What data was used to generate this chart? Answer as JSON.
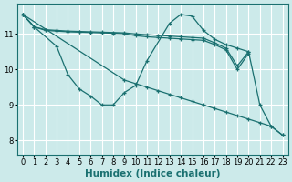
{
  "xlabel": "Humidex (Indice chaleur)",
  "ylabel": "",
  "xlim": [
    -0.5,
    23.5
  ],
  "ylim": [
    7.6,
    11.85
  ],
  "bg_color": "#cceaea",
  "grid_color": "#ffffff",
  "line_color": "#1a7070",
  "series": [
    {
      "x": [
        0,
        1,
        3,
        4,
        5,
        6,
        7,
        8,
        9,
        10,
        11,
        13,
        14,
        15,
        16,
        17,
        18,
        19,
        20,
        21,
        22,
        23
      ],
      "y": [
        11.55,
        11.2,
        10.65,
        9.85,
        9.45,
        9.25,
        9.0,
        9.0,
        9.35,
        9.55,
        10.25,
        11.3,
        11.55,
        11.5,
        11.1,
        10.85,
        10.7,
        10.6,
        10.5,
        9.0,
        8.4,
        8.15
      ]
    },
    {
      "x": [
        0,
        1,
        2,
        3,
        4,
        5,
        6,
        7,
        8,
        9,
        10,
        11,
        12,
        13,
        14,
        15,
        16,
        17,
        18,
        19,
        20
      ],
      "y": [
        11.55,
        11.2,
        11.12,
        11.1,
        11.08,
        11.07,
        11.06,
        11.05,
        11.04,
        11.03,
        11.0,
        10.98,
        10.96,
        10.94,
        10.92,
        10.9,
        10.88,
        10.75,
        10.6,
        10.1,
        10.5
      ]
    },
    {
      "x": [
        0,
        1,
        2,
        3,
        4,
        5,
        6,
        7,
        8,
        9,
        10,
        11,
        12,
        13,
        14,
        15,
        16,
        17,
        18,
        19,
        20
      ],
      "y": [
        11.55,
        11.2,
        11.1,
        11.08,
        11.06,
        11.05,
        11.04,
        11.03,
        11.02,
        11.01,
        10.95,
        10.92,
        10.9,
        10.88,
        10.86,
        10.84,
        10.82,
        10.7,
        10.55,
        10.0,
        10.45
      ]
    },
    {
      "x": [
        0,
        9,
        10,
        11,
        12,
        13,
        14,
        15,
        16,
        17,
        18,
        19,
        20,
        21,
        22,
        23
      ],
      "y": [
        11.55,
        9.7,
        9.6,
        9.5,
        9.4,
        9.3,
        9.2,
        9.1,
        9.0,
        8.9,
        8.8,
        8.7,
        8.6,
        8.5,
        8.4,
        8.15
      ]
    }
  ],
  "yticks": [
    8,
    9,
    10,
    11
  ],
  "xticks": [
    0,
    1,
    2,
    3,
    4,
    5,
    6,
    7,
    8,
    9,
    10,
    11,
    12,
    13,
    14,
    15,
    16,
    17,
    18,
    19,
    20,
    21,
    22,
    23
  ],
  "tick_fontsize": 6.0,
  "xlabel_fontsize": 7.5,
  "marker": "+",
  "marker_size": 3.5,
  "linewidth": 0.9
}
